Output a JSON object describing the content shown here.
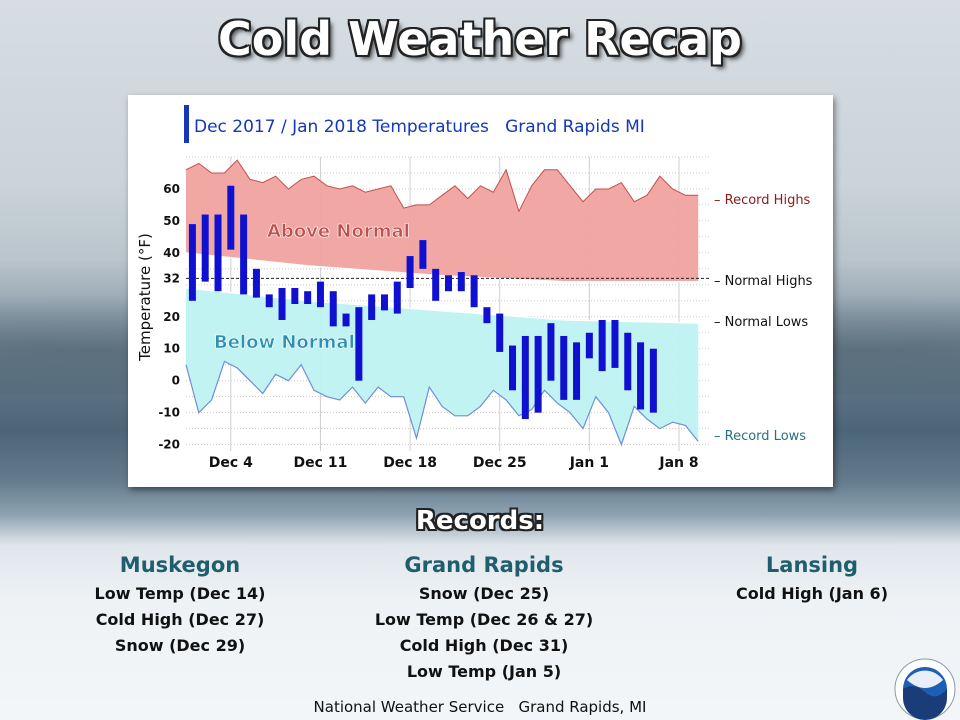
{
  "page": {
    "title": "Cold Weather Recap",
    "footer": "National Weather Service   Grand Rapids, MI"
  },
  "records": {
    "title": "Records:",
    "cities": [
      {
        "name": "Muskegon",
        "items": [
          "Low Temp (Dec 14)",
          "Cold High (Dec 27)",
          "Snow (Dec 29)"
        ]
      },
      {
        "name": "Grand Rapids",
        "items": [
          "Snow (Dec 25)",
          "Low Temp (Dec 26 & 27)",
          "Cold High (Dec 31)",
          "Low Temp (Jan 5)"
        ]
      },
      {
        "name": "Lansing",
        "items": [
          "Cold High (Jan 6)"
        ]
      }
    ]
  },
  "chart_data": {
    "type": "bar",
    "title": "Dec 2017 / Jan 2018 Temperatures   Grand Rapids MI",
    "ylabel": "Temperature (°F)",
    "ylim": [
      -22,
      70
    ],
    "yticks": [
      60,
      50,
      40,
      32,
      20,
      10,
      0,
      -10,
      -20
    ],
    "xtick_labels": [
      {
        "label": "Dec 4",
        "day": 4
      },
      {
        "label": "Dec 11",
        "day": 11
      },
      {
        "label": "Dec 18",
        "day": 18
      },
      {
        "label": "Dec 25",
        "day": 25
      },
      {
        "label": "Jan 1",
        "day": 32
      },
      {
        "label": "Jan 8",
        "day": 39
      }
    ],
    "x_range_days": [
      1,
      41
    ],
    "region_labels": {
      "above": "Above Normal",
      "below": "Below Normal"
    },
    "right_labels": {
      "record_highs": "– Record Highs",
      "normal_highs": "– Normal Highs",
      "normal_lows": "– Normal Lows",
      "record_lows": "– Record Lows"
    },
    "colors": {
      "above_fill": "#f0a3a0",
      "above_stroke": "#c0504d",
      "below_fill": "#bff2f2",
      "below_stroke": "#6f8fd8",
      "bars": "#1010d0",
      "title_bar": "#1438b8",
      "title_text": "#1438b8",
      "record_high_label": "#8b1a1a",
      "record_low_label": "#2a6f80",
      "above_text": "#c0504d",
      "below_text": "#2e8fb0"
    },
    "daily": [
      {
        "x": 1,
        "high": 49,
        "low": 25
      },
      {
        "x": 2,
        "high": 52,
        "low": 31
      },
      {
        "x": 3,
        "high": 52,
        "low": 28
      },
      {
        "x": 4,
        "high": 61,
        "low": 41
      },
      {
        "x": 5,
        "high": 52,
        "low": 27
      },
      {
        "x": 6,
        "high": 35,
        "low": 26
      },
      {
        "x": 7,
        "high": 27,
        "low": 23
      },
      {
        "x": 8,
        "high": 29,
        "low": 19
      },
      {
        "x": 9,
        "high": 29,
        "low": 24
      },
      {
        "x": 10,
        "high": 28,
        "low": 24
      },
      {
        "x": 11,
        "high": 31,
        "low": 23
      },
      {
        "x": 12,
        "high": 28,
        "low": 17
      },
      {
        "x": 13,
        "high": 21,
        "low": 17
      },
      {
        "x": 14,
        "high": 23,
        "low": 0
      },
      {
        "x": 15,
        "high": 27,
        "low": 19
      },
      {
        "x": 16,
        "high": 27,
        "low": 22
      },
      {
        "x": 17,
        "high": 31,
        "low": 21
      },
      {
        "x": 18,
        "high": 39,
        "low": 29
      },
      {
        "x": 19,
        "high": 44,
        "low": 35
      },
      {
        "x": 20,
        "high": 35,
        "low": 25
      },
      {
        "x": 21,
        "high": 33,
        "low": 28
      },
      {
        "x": 22,
        "high": 34,
        "low": 28
      },
      {
        "x": 23,
        "high": 33,
        "low": 23
      },
      {
        "x": 24,
        "high": 23,
        "low": 18
      },
      {
        "x": 25,
        "high": 21,
        "low": 9
      },
      {
        "x": 26,
        "high": 11,
        "low": -3
      },
      {
        "x": 27,
        "high": 14,
        "low": -12
      },
      {
        "x": 28,
        "high": 14,
        "low": -10
      },
      {
        "x": 29,
        "high": 18,
        "low": 0
      },
      {
        "x": 30,
        "high": 14,
        "low": -6
      },
      {
        "x": 31,
        "high": 12,
        "low": -6
      },
      {
        "x": 32,
        "high": 15,
        "low": 7
      },
      {
        "x": 33,
        "high": 19,
        "low": 3
      },
      {
        "x": 34,
        "high": 19,
        "low": 4
      },
      {
        "x": 35,
        "high": 15,
        "low": -3
      },
      {
        "x": 36,
        "high": 12,
        "low": -9
      },
      {
        "x": 37,
        "high": 10,
        "low": -10
      }
    ],
    "record_highs": [
      {
        "x": 0.5,
        "v": 66
      },
      {
        "x": 1.5,
        "v": 68
      },
      {
        "x": 2.5,
        "v": 65
      },
      {
        "x": 3.5,
        "v": 65
      },
      {
        "x": 4.5,
        "v": 69
      },
      {
        "x": 5.5,
        "v": 63
      },
      {
        "x": 6.5,
        "v": 62
      },
      {
        "x": 7.5,
        "v": 64
      },
      {
        "x": 8.5,
        "v": 60
      },
      {
        "x": 9.5,
        "v": 63
      },
      {
        "x": 10.5,
        "v": 64
      },
      {
        "x": 11.5,
        "v": 61
      },
      {
        "x": 12.5,
        "v": 60
      },
      {
        "x": 13.5,
        "v": 61
      },
      {
        "x": 14.5,
        "v": 59
      },
      {
        "x": 15.5,
        "v": 60
      },
      {
        "x": 16.5,
        "v": 61
      },
      {
        "x": 17.5,
        "v": 54
      },
      {
        "x": 18.5,
        "v": 55
      },
      {
        "x": 19.5,
        "v": 55
      },
      {
        "x": 20.5,
        "v": 58
      },
      {
        "x": 21.5,
        "v": 61
      },
      {
        "x": 22.5,
        "v": 57
      },
      {
        "x": 23.5,
        "v": 61
      },
      {
        "x": 24.5,
        "v": 59
      },
      {
        "x": 25.5,
        "v": 66
      },
      {
        "x": 26.5,
        "v": 53
      },
      {
        "x": 27.5,
        "v": 61
      },
      {
        "x": 28.5,
        "v": 66
      },
      {
        "x": 29.5,
        "v": 66
      },
      {
        "x": 30.5,
        "v": 61
      },
      {
        "x": 31.5,
        "v": 56
      },
      {
        "x": 32.5,
        "v": 60
      },
      {
        "x": 33.5,
        "v": 60
      },
      {
        "x": 34.5,
        "v": 62
      },
      {
        "x": 35.5,
        "v": 56
      },
      {
        "x": 36.5,
        "v": 58
      },
      {
        "x": 37.5,
        "v": 64
      },
      {
        "x": 38.5,
        "v": 60
      },
      {
        "x": 39.5,
        "v": 58
      },
      {
        "x": 40.5,
        "v": 58
      }
    ],
    "normal_highs": [
      {
        "x": 0.5,
        "v": 40
      },
      {
        "x": 10,
        "v": 36
      },
      {
        "x": 20,
        "v": 33
      },
      {
        "x": 30,
        "v": 31
      },
      {
        "x": 40.5,
        "v": 31
      }
    ],
    "normal_lows": [
      {
        "x": 0.5,
        "v": 29
      },
      {
        "x": 10,
        "v": 25
      },
      {
        "x": 20,
        "v": 22
      },
      {
        "x": 30,
        "v": 19
      },
      {
        "x": 40.5,
        "v": 18
      }
    ],
    "record_lows": [
      {
        "x": 0.5,
        "v": 5
      },
      {
        "x": 1.5,
        "v": -10
      },
      {
        "x": 2.5,
        "v": -6
      },
      {
        "x": 3.5,
        "v": 6
      },
      {
        "x": 4.5,
        "v": 4
      },
      {
        "x": 5.5,
        "v": 0
      },
      {
        "x": 6.5,
        "v": -4
      },
      {
        "x": 7.5,
        "v": 2
      },
      {
        "x": 8.5,
        "v": 0
      },
      {
        "x": 9.5,
        "v": 5
      },
      {
        "x": 10.5,
        "v": -3
      },
      {
        "x": 11.5,
        "v": -5
      },
      {
        "x": 12.5,
        "v": -6
      },
      {
        "x": 13.5,
        "v": -2
      },
      {
        "x": 14.5,
        "v": -7
      },
      {
        "x": 15.5,
        "v": -2
      },
      {
        "x": 16.5,
        "v": -5
      },
      {
        "x": 17.5,
        "v": -5
      },
      {
        "x": 18.5,
        "v": -18
      },
      {
        "x": 19.5,
        "v": -2
      },
      {
        "x": 20.5,
        "v": -8
      },
      {
        "x": 21.5,
        "v": -11
      },
      {
        "x": 22.5,
        "v": -11
      },
      {
        "x": 23.5,
        "v": -8
      },
      {
        "x": 24.5,
        "v": -3
      },
      {
        "x": 25.5,
        "v": -6
      },
      {
        "x": 26.5,
        "v": -11
      },
      {
        "x": 27.5,
        "v": -9
      },
      {
        "x": 28.5,
        "v": -3
      },
      {
        "x": 29.5,
        "v": -7
      },
      {
        "x": 30.5,
        "v": -10
      },
      {
        "x": 31.5,
        "v": -15
      },
      {
        "x": 32.5,
        "v": -5
      },
      {
        "x": 33.5,
        "v": -10
      },
      {
        "x": 34.5,
        "v": -20
      },
      {
        "x": 35.5,
        "v": -8
      },
      {
        "x": 36.5,
        "v": -12
      },
      {
        "x": 37.5,
        "v": -15
      },
      {
        "x": 38.5,
        "v": -13
      },
      {
        "x": 39.5,
        "v": -14
      },
      {
        "x": 40.5,
        "v": -19
      }
    ]
  }
}
